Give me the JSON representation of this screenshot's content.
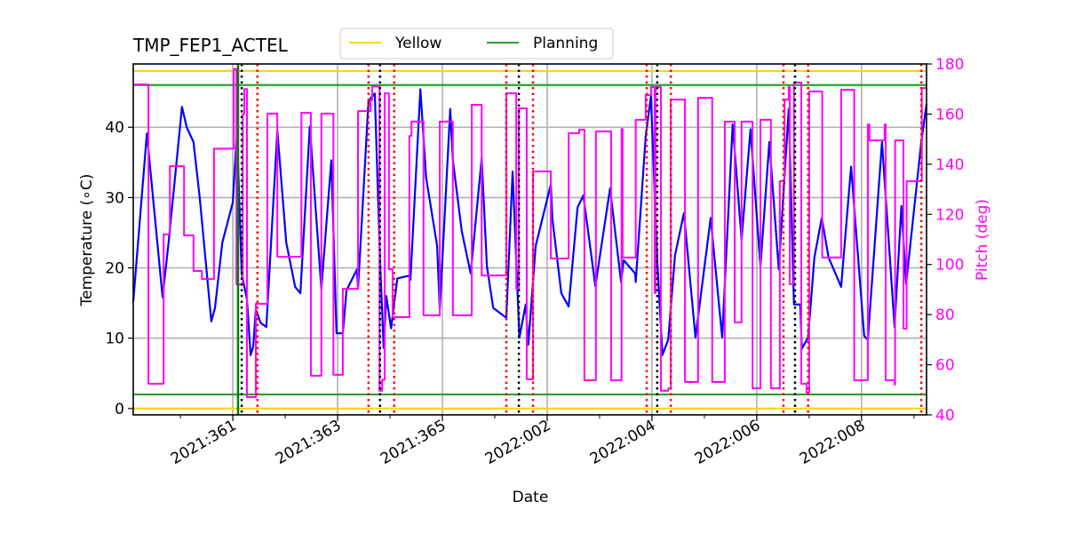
{
  "chart_data": {
    "type": "line",
    "title": "TMP_FEP1_ACTEL",
    "xlabel": "Date",
    "ylabel": "Temperature (∘C)",
    "ylabel_right": "Pitch (deg)",
    "xlim": [
      "2021:359.10",
      "2022:009.24"
    ],
    "ylim": [
      -0.9,
      49
    ],
    "ylim_right": [
      40,
      180
    ],
    "xticks": [
      "2021:361",
      "2021:363",
      "2021:365",
      "2022:002",
      "2022:004",
      "2022:006",
      "2022:008"
    ],
    "yticks": [
      "0",
      "10",
      "20",
      "30",
      "40"
    ],
    "yticks_right": [
      "40",
      "60",
      "80",
      "100",
      "120",
      "140",
      "160",
      "180"
    ],
    "grid": true,
    "legend": {
      "placement": "top-center, above plot",
      "entries": [
        {
          "label": "Yellow",
          "color": "#ffd700"
        },
        {
          "label": "Planning",
          "color": "#2ca02c"
        }
      ]
    },
    "limit_lines": [
      {
        "kind": "Yellow",
        "value": 48.0,
        "color": "#ffd700"
      },
      {
        "kind": "Yellow",
        "value": 0.0,
        "color": "#ffd700"
      },
      {
        "kind": "Planning",
        "value": 46.0,
        "color": "#2ca02c"
      },
      {
        "kind": "Planning",
        "value": 2.0,
        "color": "#2ca02c"
      }
    ],
    "vertical_lines": {
      "green_solid": [
        "2021:361.10"
      ],
      "black_dotted": [
        "2021:361.17",
        "2021:363.81",
        "2022:001.46",
        "2022:004.10",
        "2022:006.73"
      ],
      "red_dotted": [
        "2021:361.47",
        "2021:363.59",
        "2021:364.08",
        "2022:001.22",
        "2022:001.73",
        "2022:003.90",
        "2022:004.36",
        "2022:006.51",
        "2022:006.98",
        "2022:009.14"
      ]
    },
    "series": [
      {
        "axis": "left",
        "color": "#0000ff",
        "points": [
          [
            "2021:359.10",
            15.2
          ],
          [
            "2021:359.36",
            39.1
          ],
          [
            "2021:359.66",
            15.8
          ],
          [
            "2021:359.78",
            24.0
          ],
          [
            "2021:360.03",
            42.9
          ],
          [
            "2021:360.12",
            40.0
          ],
          [
            "2021:360.25",
            37.9
          ],
          [
            "2021:360.37",
            29.9
          ],
          [
            "2021:360.59",
            12.4
          ],
          [
            "2021:360.66",
            14.3
          ],
          [
            "2021:360.80",
            23.6
          ],
          [
            "2021:361.00",
            29.3
          ],
          [
            "2021:361.08",
            39.4
          ],
          [
            "2021:361.17",
            19.2
          ],
          [
            "2021:361.27",
            15.5
          ],
          [
            "2021:361.34",
            7.6
          ],
          [
            "2021:361.39",
            8.8
          ],
          [
            "2021:361.44",
            14.1
          ],
          [
            "2021:361.53",
            12.2
          ],
          [
            "2021:361.64",
            11.6
          ],
          [
            "2021:361.85",
            39.5
          ],
          [
            "2021:362.02",
            23.6
          ],
          [
            "2021:362.19",
            17.3
          ],
          [
            "2021:362.29",
            16.4
          ],
          [
            "2021:362.47",
            40.1
          ],
          [
            "2021:362.69",
            17.0
          ],
          [
            "2021:362.88",
            35.3
          ],
          [
            "2021:362.98",
            10.7
          ],
          [
            "2021:363.10",
            10.7
          ],
          [
            "2021:363.17",
            16.8
          ],
          [
            "2021:363.37",
            19.8
          ],
          [
            "2021:363.39",
            17.0
          ],
          [
            "2021:363.59",
            43.8
          ],
          [
            "2021:363.71",
            44.8
          ],
          [
            "2021:363.81",
            21.1
          ],
          [
            "2021:363.88",
            8.6
          ],
          [
            "2021:363.93",
            16.0
          ],
          [
            "2021:364.02",
            11.4
          ],
          [
            "2021:364.14",
            18.5
          ],
          [
            "2021:364.36",
            18.9
          ],
          [
            "2021:364.39",
            18.3
          ],
          [
            "2021:364.58",
            45.4
          ],
          [
            "2021:364.69",
            32.8
          ],
          [
            "2021:364.90",
            23.1
          ],
          [
            "2021:364.95",
            14.1
          ],
          [
            "2021:365.15",
            42.6
          ],
          [
            "2021:365.20",
            35.3
          ],
          [
            "2021:365.37",
            25.2
          ],
          [
            "2021:365.54",
            19.2
          ],
          [
            "2021:365.75",
            35.6
          ],
          [
            "2021:365.85",
            20.2
          ],
          [
            "2021:365.97",
            14.3
          ],
          [
            "2022:001.22",
            12.9
          ],
          [
            "2022:001.34",
            33.7
          ],
          [
            "2022:001.47",
            10.1
          ],
          [
            "2022:001.59",
            14.8
          ],
          [
            "2022:001.64",
            9.1
          ],
          [
            "2022:001.78",
            23.1
          ],
          [
            "2022:002.07",
            31.9
          ],
          [
            "2022:002.10",
            26.9
          ],
          [
            "2022:002.27",
            16.4
          ],
          [
            "2022:002.41",
            14.5
          ],
          [
            "2022:002.58",
            28.6
          ],
          [
            "2022:002.69",
            30.3
          ],
          [
            "2022:002.92",
            17.4
          ],
          [
            "2022:003.20",
            31.3
          ],
          [
            "2022:003.41",
            18.0
          ],
          [
            "2022:003.46",
            21.1
          ],
          [
            "2022:003.68",
            19.2
          ],
          [
            "2022:003.69",
            18.0
          ],
          [
            "2022:003.88",
            38.7
          ],
          [
            "2022:003.98",
            44.4
          ],
          [
            "2022:004.10",
            21.1
          ],
          [
            "2022:004.20",
            7.6
          ],
          [
            "2022:004.31",
            9.8
          ],
          [
            "2022:004.44",
            21.8
          ],
          [
            "2022:004.61",
            27.8
          ],
          [
            "2022:004.83",
            10.1
          ],
          [
            "2022:005.12",
            27.1
          ],
          [
            "2022:005.34",
            10.1
          ],
          [
            "2022:005.54",
            40.4
          ],
          [
            "2022:005.71",
            24.0
          ],
          [
            "2022:005.88",
            39.7
          ],
          [
            "2022:006.07",
            20.2
          ],
          [
            "2022:006.24",
            37.9
          ],
          [
            "2022:006.42",
            19.8
          ],
          [
            "2022:006.61",
            42.6
          ],
          [
            "2022:006.71",
            14.8
          ],
          [
            "2022:006.83",
            14.8
          ],
          [
            "2022:006.86",
            8.5
          ],
          [
            "2022:006.98",
            10.1
          ],
          [
            "2022:007.10",
            21.5
          ],
          [
            "2022:007.24",
            27.1
          ],
          [
            "2022:007.37",
            21.5
          ],
          [
            "2022:007.53",
            18.7
          ],
          [
            "2022:007.61",
            17.3
          ],
          [
            "2022:007.80",
            34.4
          ],
          [
            "2022:008.05",
            10.3
          ],
          [
            "2022:008.12",
            9.8
          ],
          [
            "2022:008.39",
            37.9
          ],
          [
            "2022:008.63",
            11.6
          ],
          [
            "2022:008.76",
            28.8
          ],
          [
            "2022:008.85",
            17.7
          ],
          [
            "2022:009.14",
            37.9
          ],
          [
            "2022:009.24",
            43.3
          ]
        ]
      },
      {
        "axis": "right",
        "color": "#ff00ff",
        "step": "post",
        "points": [
          [
            "2021:359.12",
            171.8
          ],
          [
            "2021:359.39",
            52.4
          ],
          [
            "2021:359.68",
            112.0
          ],
          [
            "2021:359.80",
            139.2
          ],
          [
            "2021:360.07",
            111.6
          ],
          [
            "2021:360.25",
            97.4
          ],
          [
            "2021:360.41",
            94.2
          ],
          [
            "2021:360.64",
            146.2
          ],
          [
            "2021:361.02",
            178.0
          ],
          [
            "2021:361.07",
            92.0
          ],
          [
            "2021:361.19",
            160.0
          ],
          [
            "2021:361.22",
            170.0
          ],
          [
            "2021:361.27",
            47.1
          ],
          [
            "2021:361.44",
            84.3
          ],
          [
            "2021:361.66",
            160.2
          ],
          [
            "2021:361.85",
            103.1
          ],
          [
            "2021:362.31",
            160.5
          ],
          [
            "2021:362.49",
            55.6
          ],
          [
            "2021:362.69",
            160.2
          ],
          [
            "2021:362.92",
            56.0
          ],
          [
            "2021:363.10",
            90.3
          ],
          [
            "2021:363.39",
            161.2
          ],
          [
            "2021:363.63",
            165.5
          ],
          [
            "2021:363.66",
            171.0
          ],
          [
            "2021:363.80",
            49.6
          ],
          [
            "2021:363.85",
            54.0
          ],
          [
            "2021:363.90",
            168.3
          ],
          [
            "2021:363.98",
            98.1
          ],
          [
            "2021:364.05",
            79.0
          ],
          [
            "2021:364.37",
            151.3
          ],
          [
            "2021:364.41",
            157.0
          ],
          [
            "2021:364.64",
            79.7
          ],
          [
            "2021:364.95",
            157.0
          ],
          [
            "2021:365.20",
            79.7
          ],
          [
            "2021:365.56",
            163.7
          ],
          [
            "2021:365.75",
            95.6
          ],
          [
            "2022:001.22",
            168.3
          ],
          [
            "2022:001.41",
            90.3
          ],
          [
            "2022:001.46",
            162.3
          ],
          [
            "2022:001.61",
            54.2
          ],
          [
            "2022:001.73",
            137.1
          ],
          [
            "2022:002.07",
            102.4
          ],
          [
            "2022:002.41",
            152.4
          ],
          [
            "2022:002.61",
            153.8
          ],
          [
            "2022:002.71",
            53.8
          ],
          [
            "2022:002.93",
            153.1
          ],
          [
            "2022:003.22",
            53.8
          ],
          [
            "2022:003.42",
            154.1
          ],
          [
            "2022:003.44",
            102.8
          ],
          [
            "2022:003.69",
            157.7
          ],
          [
            "2022:003.88",
            167.6
          ],
          [
            "2022:003.98",
            170.8
          ],
          [
            "2022:004.05",
            88.6
          ],
          [
            "2022:004.07",
            170.8
          ],
          [
            "2022:004.17",
            49.6
          ],
          [
            "2022:004.31",
            50.5
          ],
          [
            "2022:004.36",
            165.8
          ],
          [
            "2022:004.63",
            53.1
          ],
          [
            "2022:004.88",
            166.5
          ],
          [
            "2022:005.15",
            53.1
          ],
          [
            "2022:005.39",
            157.0
          ],
          [
            "2022:005.58",
            76.9
          ],
          [
            "2022:005.71",
            157.0
          ],
          [
            "2022:005.92",
            50.6
          ],
          [
            "2022:006.07",
            157.7
          ],
          [
            "2022:006.27",
            50.6
          ],
          [
            "2022:006.44",
            133.2
          ],
          [
            "2022:006.53",
            165.8
          ],
          [
            "2022:006.61",
            170.8
          ],
          [
            "2022:006.63",
            92.1
          ],
          [
            "2022:006.71",
            172.6
          ],
          [
            "2022:006.85",
            52.4
          ],
          [
            "2022:006.95",
            48.9
          ],
          [
            "2022:007.00",
            169.0
          ],
          [
            "2022:007.25",
            102.8
          ],
          [
            "2022:007.61",
            169.7
          ],
          [
            "2022:007.86",
            53.8
          ],
          [
            "2022:008.12",
            155.9
          ],
          [
            "2022:008.15",
            149.5
          ],
          [
            "2022:008.44",
            155.9
          ],
          [
            "2022:008.46",
            53.8
          ],
          [
            "2022:008.63",
            52.1
          ],
          [
            "2022:008.64",
            149.5
          ],
          [
            "2022:008.80",
            74.4
          ],
          [
            "2022:008.86",
            133.2
          ],
          [
            "2022:009.15",
            170.4
          ],
          [
            "2022:009.24",
            170.4
          ]
        ]
      }
    ]
  }
}
